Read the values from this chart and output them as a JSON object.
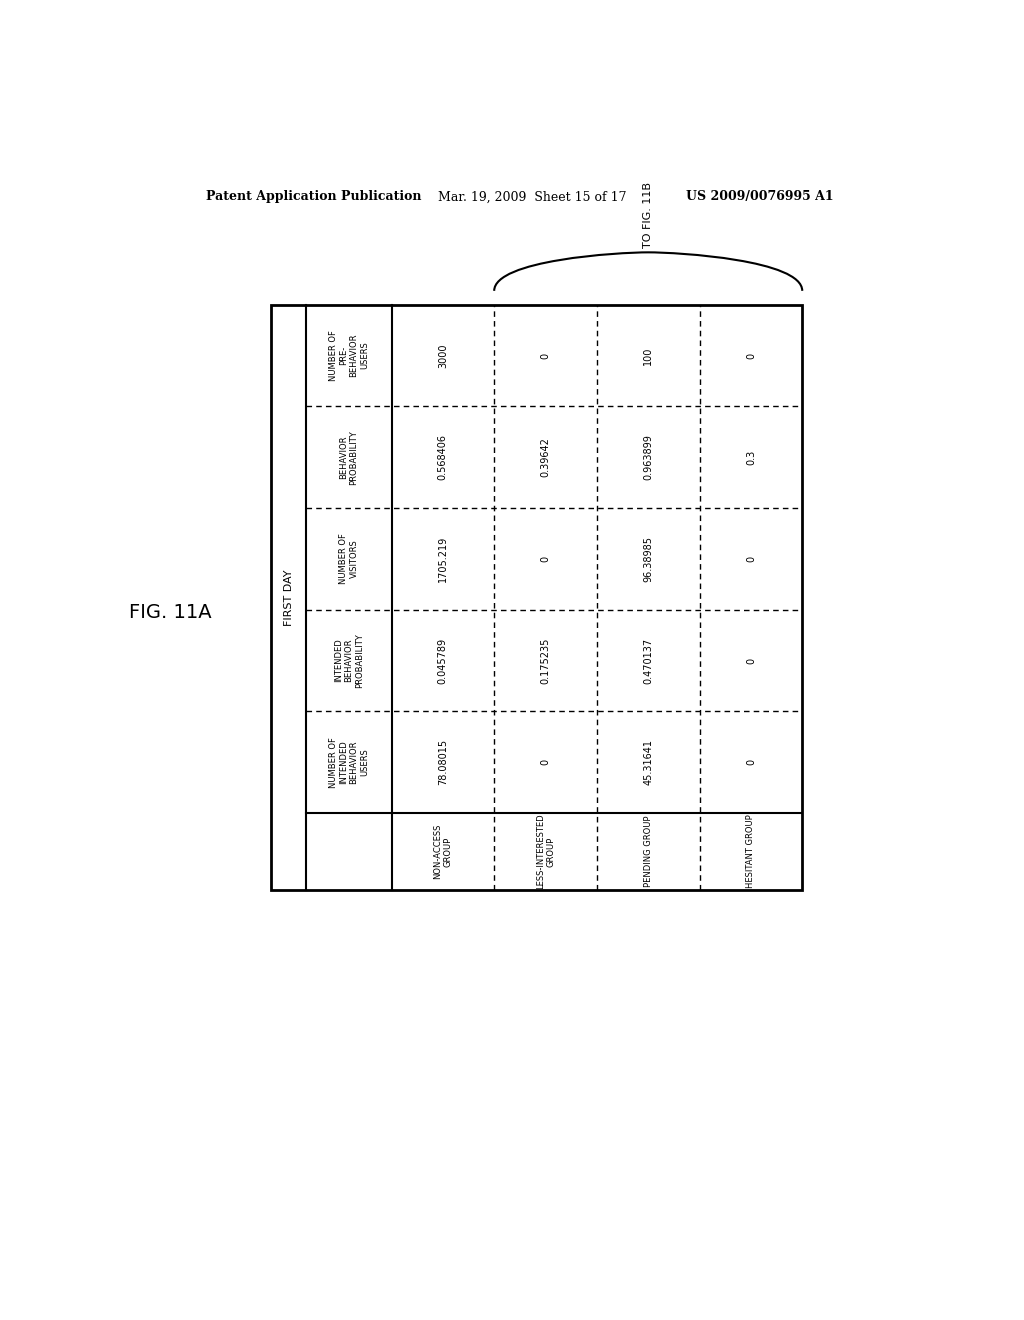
{
  "header_text_left": "Patent Application Publication",
  "header_text_mid": "Mar. 19, 2009  Sheet 15 of 17",
  "header_text_right": "US 2009/0076995 A1",
  "fig_label": "FIG. 11A",
  "to_fig_label": "TO FIG. 11B",
  "first_day_label": "FIRST DAY",
  "col_headers": [
    "NUMBER OF\nPRE-\nBEHAVIOR\nUSERS",
    "BEHAVIOR\nPROBABILITY",
    "NUMBER OF\nVISITORS",
    "INTENDED\nBEHAVIOR\nPROBABILITY",
    "NUMBER OF\nINTENDED\nBEHAVIOR\nUSERS"
  ],
  "row_labels": [
    "NON-ACCESS\nGROUP",
    "LESS-INTERESTED\nGROUP",
    "PENDING GROUP",
    "HESITANT GROUP"
  ],
  "cell_data": [
    [
      "3000",
      "0.568406",
      "1705.219",
      "0.045789",
      "78.08015"
    ],
    [
      "0",
      "0.39642",
      "0",
      "0.175235",
      "0"
    ],
    [
      "100",
      "0.963899",
      "96.38985",
      "0.470137",
      "45.31641"
    ],
    [
      "0",
      "0.3",
      "0",
      "0",
      "0"
    ]
  ],
  "bg_color": "#ffffff",
  "text_color": "#000000"
}
